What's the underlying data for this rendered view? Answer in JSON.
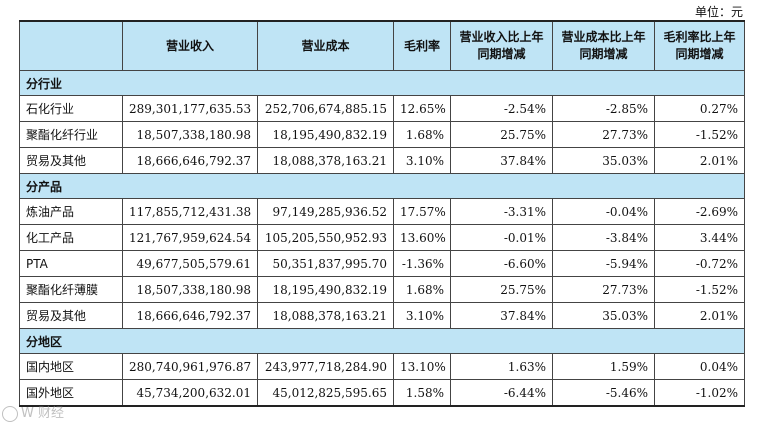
{
  "unit_label": "单位：元",
  "headers": [
    "",
    "营业收入",
    "营业成本",
    "毛利率",
    "营业收入比上年同期增减",
    "营业成本比上年同期增减",
    "毛利率比上年同期增减"
  ],
  "sections": [
    {
      "title": "分行业",
      "rows": [
        {
          "name": "石化行业",
          "revenue": "289,301,177,635.53",
          "cost": "252,706,674,885.15",
          "margin": "12.65%",
          "rev_chg": "-2.54%",
          "cost_chg": "-2.85%",
          "margin_chg": "0.27%"
        },
        {
          "name": "聚酯化纤行业",
          "revenue": "18,507,338,180.98",
          "cost": "18,195,490,832.19",
          "margin": "1.68%",
          "rev_chg": "25.75%",
          "cost_chg": "27.73%",
          "margin_chg": "-1.52%"
        },
        {
          "name": "贸易及其他",
          "revenue": "18,666,646,792.37",
          "cost": "18,088,378,163.21",
          "margin": "3.10%",
          "rev_chg": "37.84%",
          "cost_chg": "35.03%",
          "margin_chg": "2.01%"
        }
      ]
    },
    {
      "title": "分产品",
      "rows": [
        {
          "name": "炼油产品",
          "revenue": "117,855,712,431.38",
          "cost": "97,149,285,936.52",
          "margin": "17.57%",
          "rev_chg": "-3.31%",
          "cost_chg": "-0.04%",
          "margin_chg": "-2.69%"
        },
        {
          "name": "化工产品",
          "revenue": "121,767,959,624.54",
          "cost": "105,205,550,952.93",
          "margin": "13.60%",
          "rev_chg": "-0.01%",
          "cost_chg": "-3.84%",
          "margin_chg": "3.44%"
        },
        {
          "name": "PTA",
          "revenue": "49,677,505,579.61",
          "cost": "50,351,837,995.70",
          "margin": "-1.36%",
          "rev_chg": "-6.60%",
          "cost_chg": "-5.94%",
          "margin_chg": "-0.72%"
        },
        {
          "name": "聚酯化纤薄膜",
          "revenue": "18,507,338,180.98",
          "cost": "18,195,490,832.19",
          "margin": "1.68%",
          "rev_chg": "25.75%",
          "cost_chg": "27.73%",
          "margin_chg": "-1.52%"
        },
        {
          "name": "贸易及其他",
          "revenue": "18,666,646,792.37",
          "cost": "18,088,378,163.21",
          "margin": "3.10%",
          "rev_chg": "37.84%",
          "cost_chg": "35.03%",
          "margin_chg": "2.01%"
        }
      ]
    },
    {
      "title": "分地区",
      "rows": [
        {
          "name": "国内地区",
          "revenue": "280,740,961,976.87",
          "cost": "243,977,718,284.90",
          "margin": "13.10%",
          "rev_chg": "1.63%",
          "cost_chg": "1.59%",
          "margin_chg": "0.04%"
        },
        {
          "name": "国外地区",
          "revenue": "45,734,200,632.01",
          "cost": "45,012,825,595.65",
          "margin": "1.58%",
          "rev_chg": "-6.44%",
          "cost_chg": "-5.46%",
          "margin_chg": "-1.02%"
        }
      ]
    }
  ],
  "watermark": "W 财经"
}
